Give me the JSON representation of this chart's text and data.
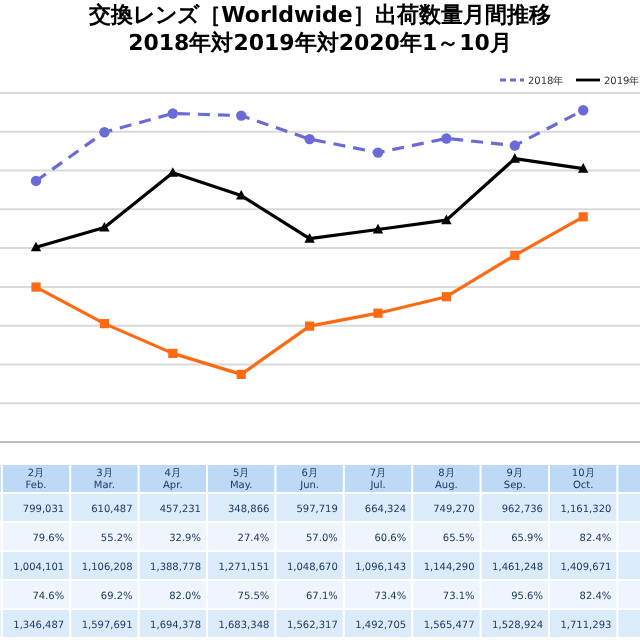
{
  "chart_data": {
    "type": "line",
    "title": "交換レンズ［Worldwide］出荷数量月間推移",
    "subtitle": "2018年対2019年対2020年1～10月",
    "categories": [
      "2月\nFeb.",
      "3月\nMar.",
      "4月\nApr.",
      "5月\nMay.",
      "6月\nJun.",
      "7月\nJul.",
      "8月\nAug.",
      "9月\nSep.",
      "10月\nOct."
    ],
    "series": [
      {
        "name": "2018年",
        "color": "#6b6bd8",
        "marker": "circle",
        "line_style": "dashed",
        "values": [
          1346487,
          1597691,
          1694378,
          1683348,
          1562317,
          1492705,
          1565477,
          1528924,
          1711293
        ],
        "value_labels": [
          "1,346,487",
          "1,597,691",
          "1,694,378",
          "1,683,348",
          "1,562,317",
          "1,492,705",
          "1,565,477",
          "1,528,924",
          "1,711,293"
        ]
      },
      {
        "name": "2019年",
        "color": "#000000",
        "marker": "triangle",
        "line_style": "solid",
        "values": [
          1004101,
          1106208,
          1388778,
          1271151,
          1048670,
          1096143,
          1144290,
          1461248,
          1409671
        ],
        "value_labels": [
          "1,004,101",
          "1,106,208",
          "1,388,778",
          "1,271,151",
          "1,048,670",
          "1,096,143",
          "1,144,290",
          "1,461,248",
          "1,409,671"
        ]
      },
      {
        "color": "#ff6a13",
        "marker": "square",
        "line_style": "solid",
        "values": [
          799031,
          610487,
          457231,
          348866,
          597719,
          664324,
          749270,
          962736,
          1161320
        ],
        "value_labels": [
          "799,031",
          "610,487",
          "457,231",
          "348,866",
          "597,719",
          "664,324",
          "749,270",
          "962,736",
          "1,161,320"
        ]
      }
    ],
    "annotations": [
      "79.6%",
      "55.2%",
      "32.9%",
      "27.4%",
      "57.0%",
      "60.6%",
      "65.5%",
      "65.9%",
      "82.4%",
      "74.6%",
      "69.2%",
      "82.0%",
      "75.5%",
      "67.1%",
      "73.4%",
      "73.1%",
      "95.6%",
      "82.4%"
    ],
    "ylim": [
      0,
      1800000
    ],
    "yticks": [
      {
        "value": 0,
        "label": null
      },
      {
        "value": 200000,
        "label": null
      },
      {
        "value": 400000,
        "label": null
      },
      {
        "value": 600000,
        "label": null
      },
      {
        "value": 800000,
        "label": null
      },
      {
        "value": 1000000,
        "label": null
      },
      {
        "value": 1200000,
        "label": null
      },
      {
        "value": 1400000,
        "label": null
      },
      {
        "value": 1600000,
        "label": null
      },
      {
        "value": 1800000,
        "label": null
      }
    ],
    "grid": "y",
    "legend": "top right",
    "tick_labels": "x"
  }
}
